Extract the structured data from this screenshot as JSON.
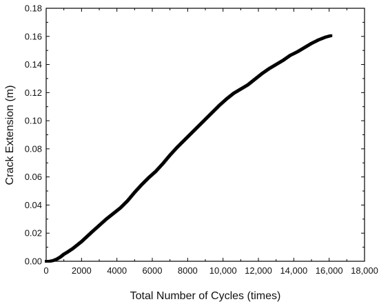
{
  "chart_data": {
    "type": "scatter",
    "title": "",
    "xlabel": "Total Number of Cycles (times)",
    "ylabel": "Crack Extension (m)",
    "xlim": [
      0,
      18000
    ],
    "ylim": [
      0,
      0.18
    ],
    "xticks": [
      0,
      2000,
      4000,
      6000,
      8000,
      10000,
      12000,
      14000,
      16000,
      18000
    ],
    "xtick_labels": [
      "0",
      "2000",
      "4000",
      "6000",
      "8000",
      "10,000",
      "12,000",
      "14,000",
      "16,000",
      "18,000"
    ],
    "yticks": [
      0,
      0.02,
      0.04,
      0.06,
      0.08,
      0.1,
      0.12,
      0.14,
      0.16,
      0.18
    ],
    "ytick_labels": [
      "0.00",
      "0.02",
      "0.04",
      "0.06",
      "0.08",
      "0.10",
      "0.12",
      "0.14",
      "0.16",
      "0.18"
    ],
    "grid": false,
    "marker_color": "#000000",
    "series": [
      {
        "x": [
          0,
          200,
          400,
          600,
          800,
          1000,
          1200,
          1500,
          1800,
          2000,
          2300,
          2600,
          3000,
          3400,
          3800,
          4200,
          4600,
          5000,
          5400,
          5800,
          6200,
          6600,
          7000,
          7400,
          7800,
          8200,
          8600,
          9000,
          9400,
          9800,
          10200,
          10600,
          11000,
          11400,
          11800,
          12200,
          12600,
          13000,
          13400,
          13800,
          14200,
          14600,
          15000,
          15400,
          15800,
          16100
        ],
        "y": [
          0.0,
          0.0,
          0.0005,
          0.0015,
          0.003,
          0.005,
          0.0065,
          0.009,
          0.012,
          0.014,
          0.0175,
          0.021,
          0.0255,
          0.03,
          0.034,
          0.038,
          0.043,
          0.049,
          0.0545,
          0.0595,
          0.064,
          0.0695,
          0.0755,
          0.081,
          0.086,
          0.091,
          0.096,
          0.101,
          0.106,
          0.111,
          0.1155,
          0.1195,
          0.1225,
          0.1255,
          0.1295,
          0.1335,
          0.137,
          0.14,
          0.143,
          0.1465,
          0.149,
          0.152,
          0.155,
          0.1575,
          0.1595,
          0.1605
        ]
      }
    ]
  }
}
